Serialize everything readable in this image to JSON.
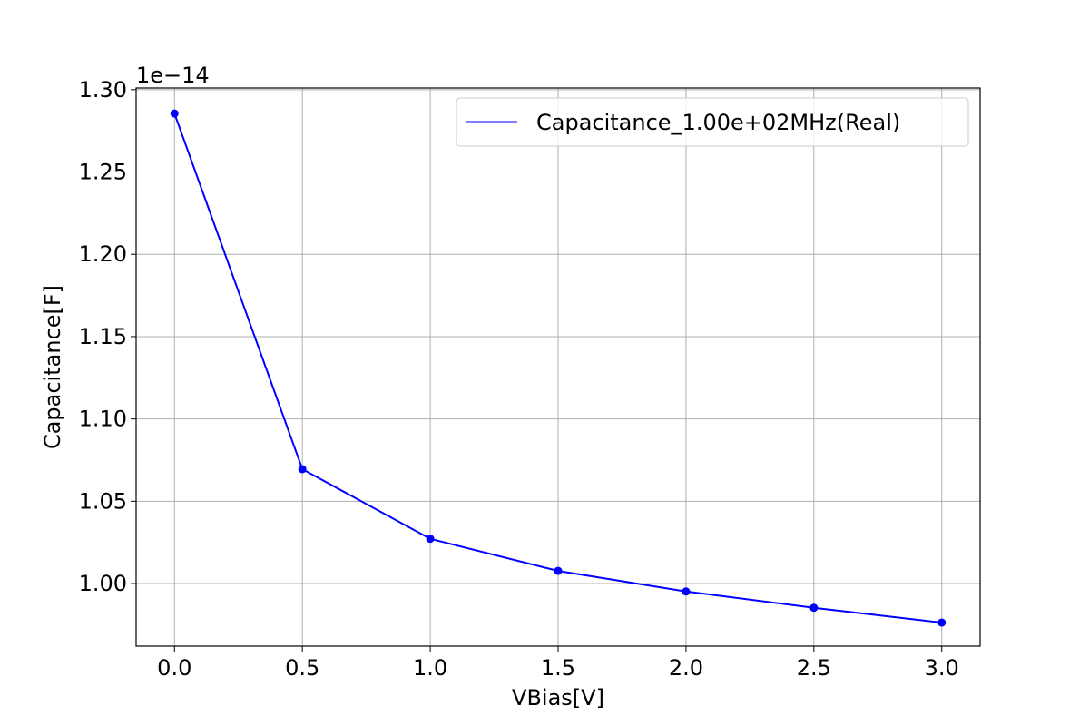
{
  "chart_data": {
    "type": "line",
    "title": "",
    "xlabel": "VBias[V]",
    "ylabel": "Capacitance[F]",
    "y_offset_label": "1e−14",
    "x": [
      0.0,
      0.5,
      1.0,
      1.5,
      2.0,
      2.5,
      3.0
    ],
    "series": [
      {
        "name": "Capacitance_1.00e+02MHz(Real)",
        "color": "#0000ff",
        "marker": "circle",
        "values": [
          1.2855,
          1.0695,
          1.0272,
          1.0077,
          0.9952,
          0.9853,
          0.9763
        ]
      }
    ],
    "xlim": [
      -0.15,
      3.15
    ],
    "ylim": [
      0.962,
      1.301
    ],
    "x_ticks": [
      0.0,
      0.5,
      1.0,
      1.5,
      2.0,
      2.5,
      3.0
    ],
    "x_tick_labels": [
      "0.0",
      "0.5",
      "1.0",
      "1.5",
      "2.0",
      "2.5",
      "3.0"
    ],
    "y_ticks": [
      1.0,
      1.05,
      1.1,
      1.15,
      1.2,
      1.25,
      1.3
    ],
    "y_tick_labels": [
      "1.00",
      "1.05",
      "1.10",
      "1.15",
      "1.20",
      "1.25",
      "1.30"
    ],
    "grid": true,
    "legend_position": "top-right",
    "colors": {
      "grid": "#b0b0b0",
      "axes": "#000000"
    }
  }
}
